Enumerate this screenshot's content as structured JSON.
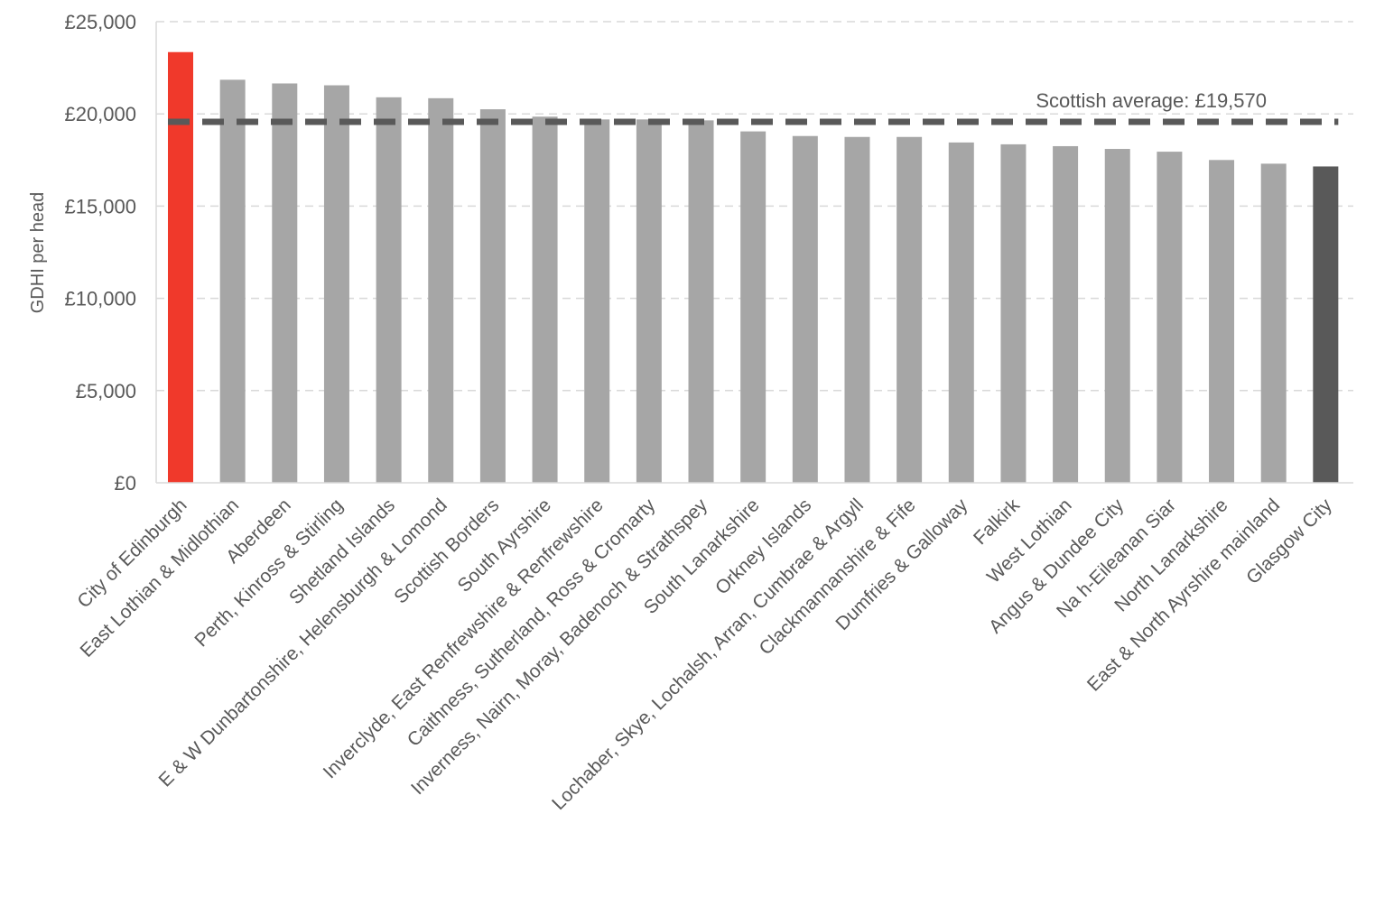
{
  "chart_data": {
    "type": "bar",
    "ylabel": "GDHI per head",
    "ylim": [
      0,
      25000
    ],
    "y_ticks": [
      0,
      5000,
      10000,
      15000,
      20000,
      25000
    ],
    "y_tick_labels": [
      "£0",
      "£5,000",
      "£10,000",
      "£15,000",
      "£20,000",
      "£25,000"
    ],
    "grid": "horizontal-dashed",
    "categories": [
      "City of Edinburgh",
      "East Lothian & Midlothian",
      "Aberdeen",
      "Perth, Kinross & Stirling",
      "Shetland Islands",
      "E & W Dunbartonshire, Helensburgh & Lomond",
      "Scottish Borders",
      "South Ayrshire",
      "Inverclyde, East Renfrewshire & Renfrewshire",
      "Caithness, Sutherland, Ross & Cromarty",
      "Inverness, Nairn, Moray, Badenoch & Strathspey",
      "South Lanarkshire",
      "Orkney Islands",
      "Lochaber, Skye, Lochalsh, Arran, Cumbrae & Argyll",
      "Clackmannanshire & Fife",
      "Dumfries & Galloway",
      "Falkirk",
      "West Lothian",
      "Angus & Dundee City",
      "Na h-Eileanan Siar",
      "North Lanarkshire",
      "East & North Ayrshire mainland",
      "Glasgow City"
    ],
    "values": [
      23350,
      21850,
      21650,
      21550,
      20900,
      20850,
      20250,
      19850,
      19700,
      19700,
      19650,
      19050,
      18800,
      18750,
      18750,
      18450,
      18350,
      18250,
      18100,
      17950,
      17500,
      17300,
      17150
    ],
    "highlight": {
      "City of Edinburgh": "#f0392b",
      "Glasgow City": "#595959"
    },
    "bar_color": "#a6a6a6",
    "reference_line": {
      "value": 19570,
      "label": "Scottish average: £19,570",
      "color": "#595959",
      "style": "dashed"
    }
  }
}
